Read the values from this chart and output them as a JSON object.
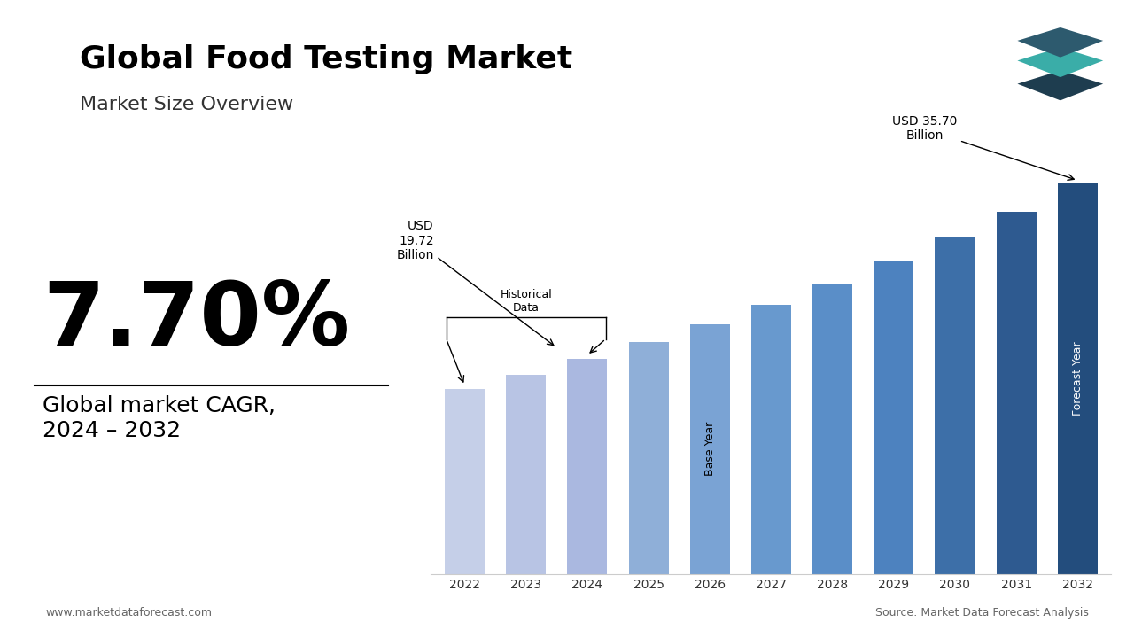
{
  "years": [
    2022,
    2023,
    2024,
    2025,
    2026,
    2027,
    2028,
    2029,
    2030,
    2031,
    2032
  ],
  "values": [
    16.95,
    18.25,
    19.72,
    21.24,
    22.87,
    24.63,
    26.53,
    28.57,
    30.78,
    33.15,
    35.7
  ],
  "bar_colors": [
    "#c5cfe8",
    "#b8c4e4",
    "#aab8e0",
    "#8fafd8",
    "#7aa3d4",
    "#6899ce",
    "#5a8ec8",
    "#4d82bf",
    "#3d6fa8",
    "#2e5a90",
    "#234d7d"
  ],
  "title": "Global Food Testing Market",
  "subtitle": "Market Size Overview",
  "title_color": "#000000",
  "subtitle_color": "#333333",
  "cagr_text": "7.70%",
  "cagr_label": "Global market CAGR,\n2024 – 2032",
  "annotation_2024_text": "USD\n19.72\nBillion",
  "annotation_2032_text": "USD 35.70\nBillion",
  "historical_label": "Historical\nData",
  "base_year_label": "Base Year",
  "forecast_year_label": "Forecast Year",
  "footer_left": "www.marketdataforecast.com",
  "footer_right": "Source: Market Data Forecast Analysis",
  "teal_bar_color": "#3aada8",
  "background_color": "#ffffff"
}
